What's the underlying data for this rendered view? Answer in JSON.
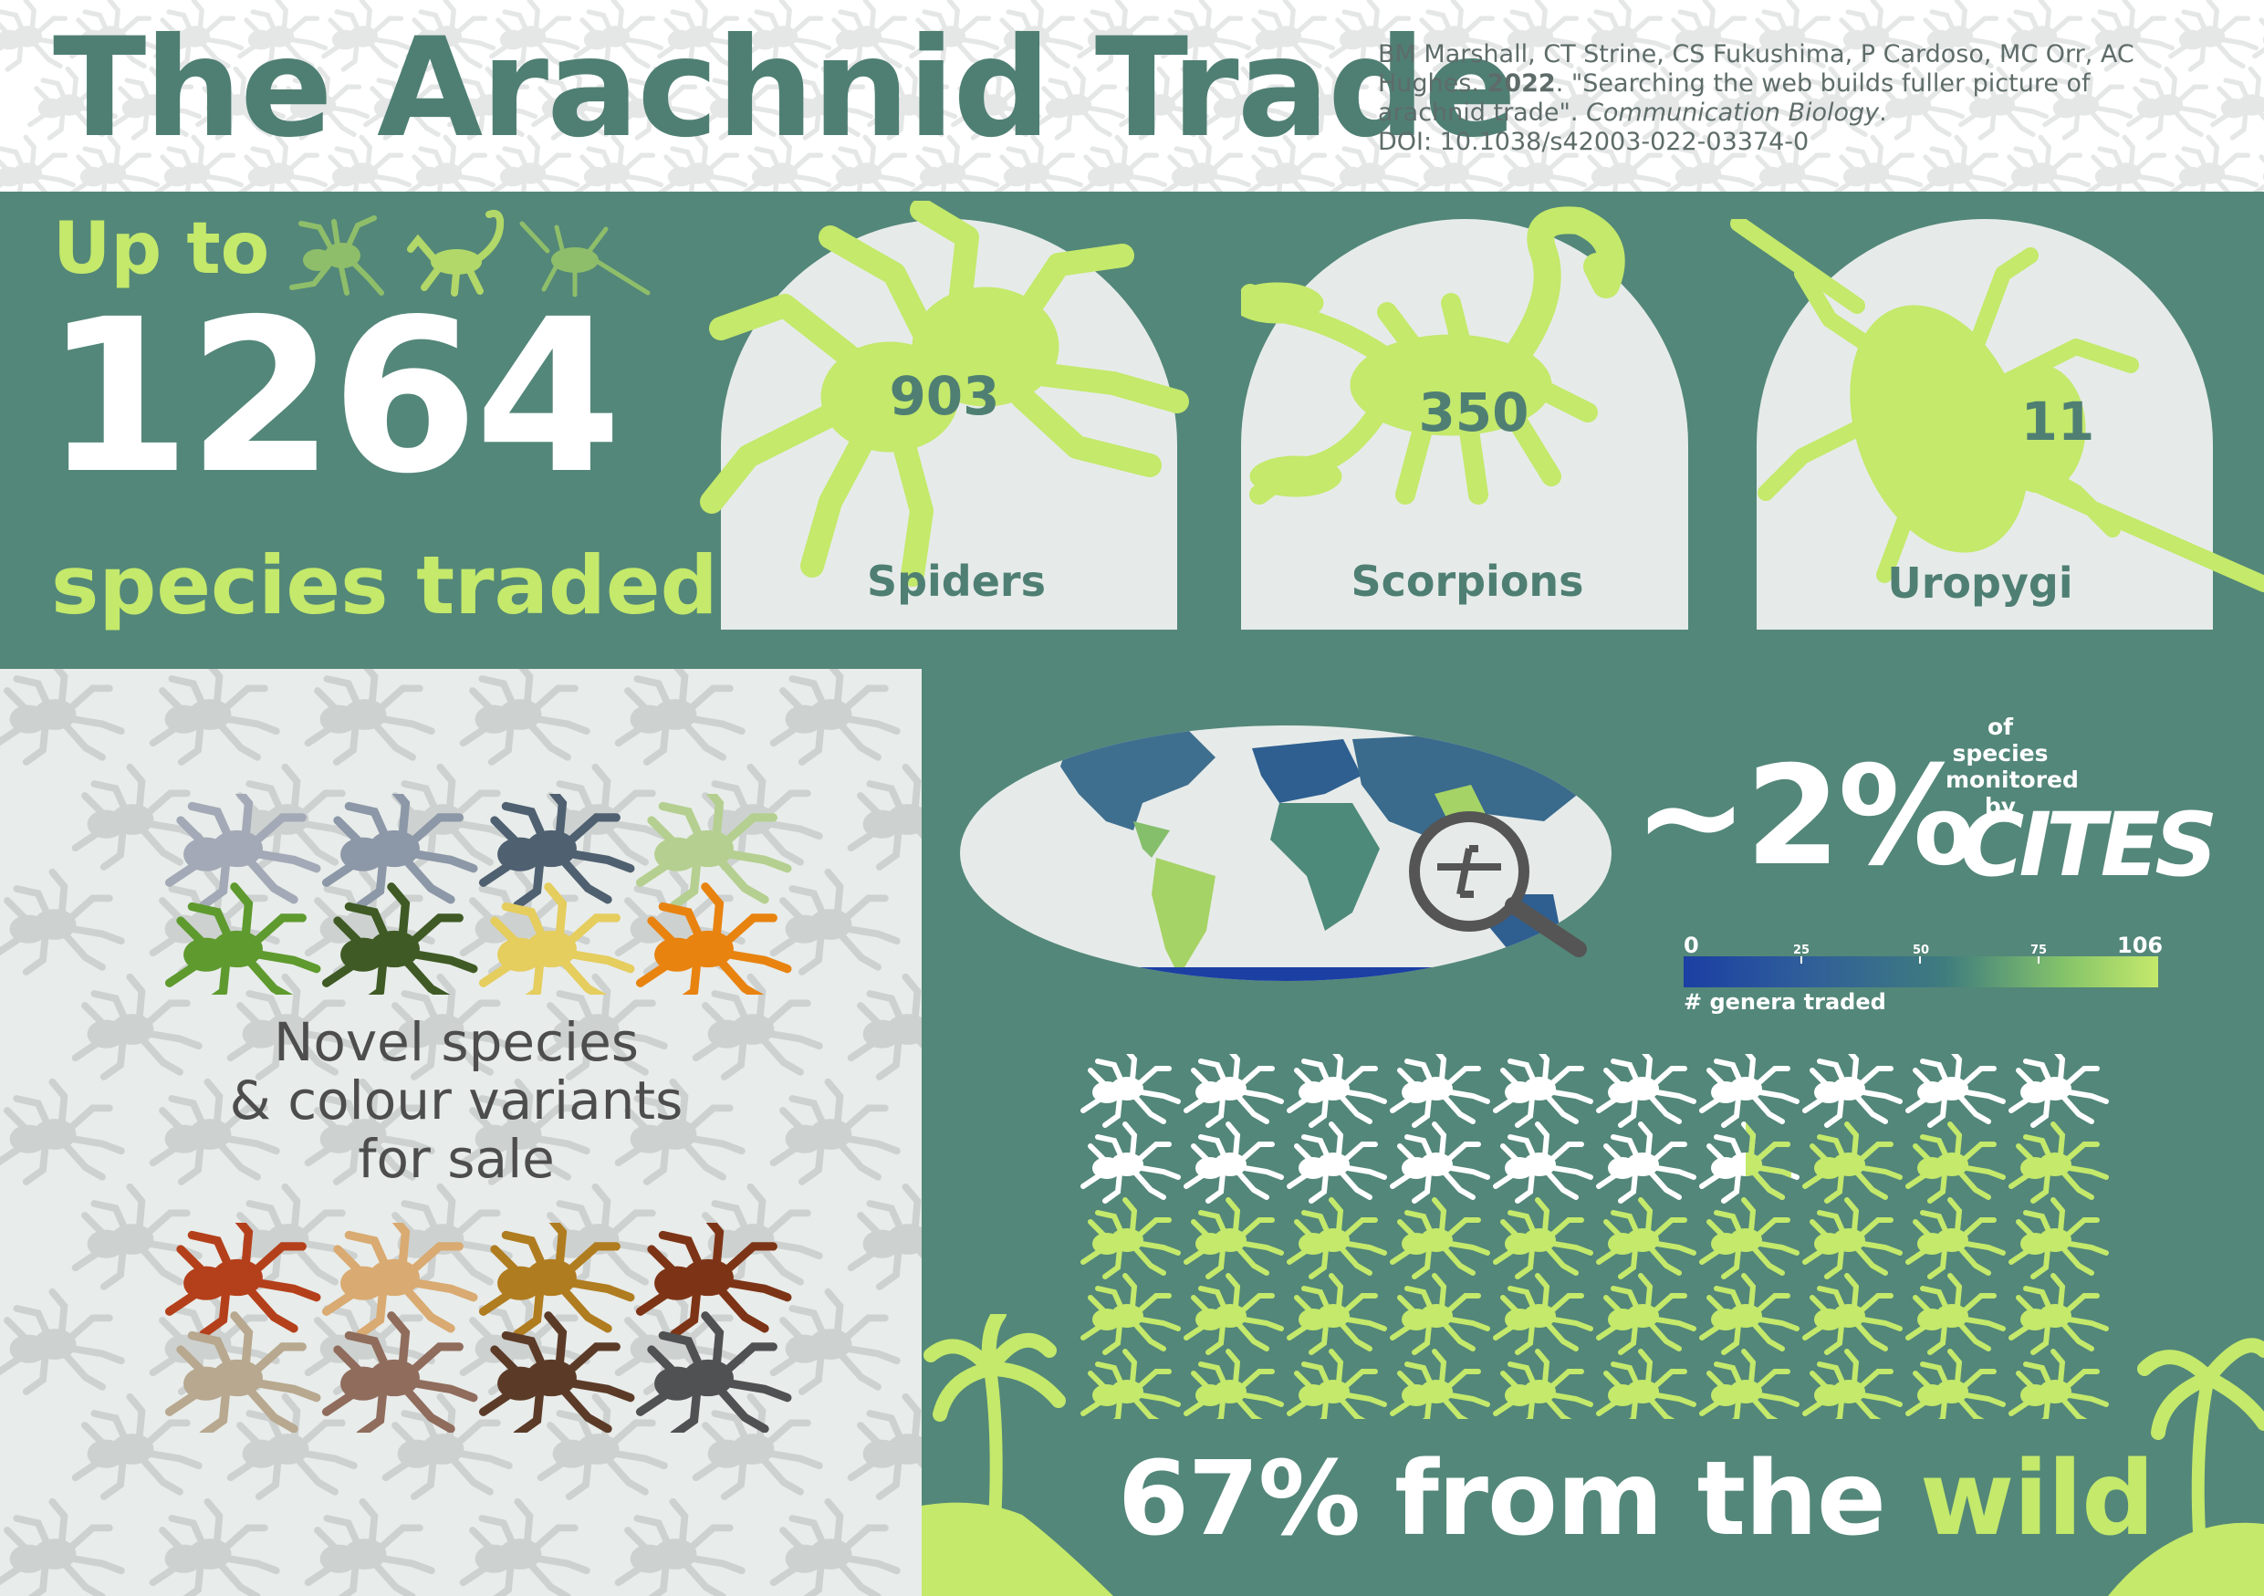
{
  "header": {
    "title": "The Arachnid Trade",
    "citation_authors": "BM Marshall, CT Strine, CS Fukushima, P Cardoso, MC Orr, AC Hughes.",
    "citation_year": "2022",
    "citation_title": ". \"Searching the web builds fuller picture of arachnid trade\".",
    "citation_journal": "Communication Biology",
    "citation_doi": "DOI: 10.1038/s42003-022-03374-0"
  },
  "summary": {
    "up_to": "Up to",
    "total": "1264",
    "species_traded": "species traded"
  },
  "groups": [
    {
      "label": "Spiders",
      "count": "903"
    },
    {
      "label": "Scorpions",
      "count": "350"
    },
    {
      "label": "Uropygi",
      "count": "11"
    }
  ],
  "variants": {
    "caption_line1": "Novel species",
    "caption_line2": "& colour variants",
    "caption_line3": "for sale",
    "colors_top": [
      "#a3a9b6",
      "#8c97a7",
      "#4f6070",
      "#b4cf8f",
      "#5e9a2e",
      "#3f5a24",
      "#e5cd5e",
      "#e88310"
    ],
    "colors_bottom": [
      "#b4401b",
      "#d9aa71",
      "#b07c20",
      "#7d3416",
      "#b7a88f",
      "#8f6c5c",
      "#5b3b28",
      "#505152"
    ]
  },
  "cites": {
    "percent": "~2%",
    "caption": "of species monitored by",
    "logo_text": "CITES"
  },
  "map_legend": {
    "min": "0",
    "t25": "25",
    "t50": "50",
    "t75": "75",
    "max": "106",
    "title": "# genera traded"
  },
  "wild": {
    "percent_value": 67,
    "text_prefix": "67% from the",
    "text_highlight": "wild"
  },
  "colors": {
    "teal": "#538779",
    "dark_teal": "#4f7f73",
    "lime": "#c4e96b",
    "pale": "#e6ebe9"
  }
}
